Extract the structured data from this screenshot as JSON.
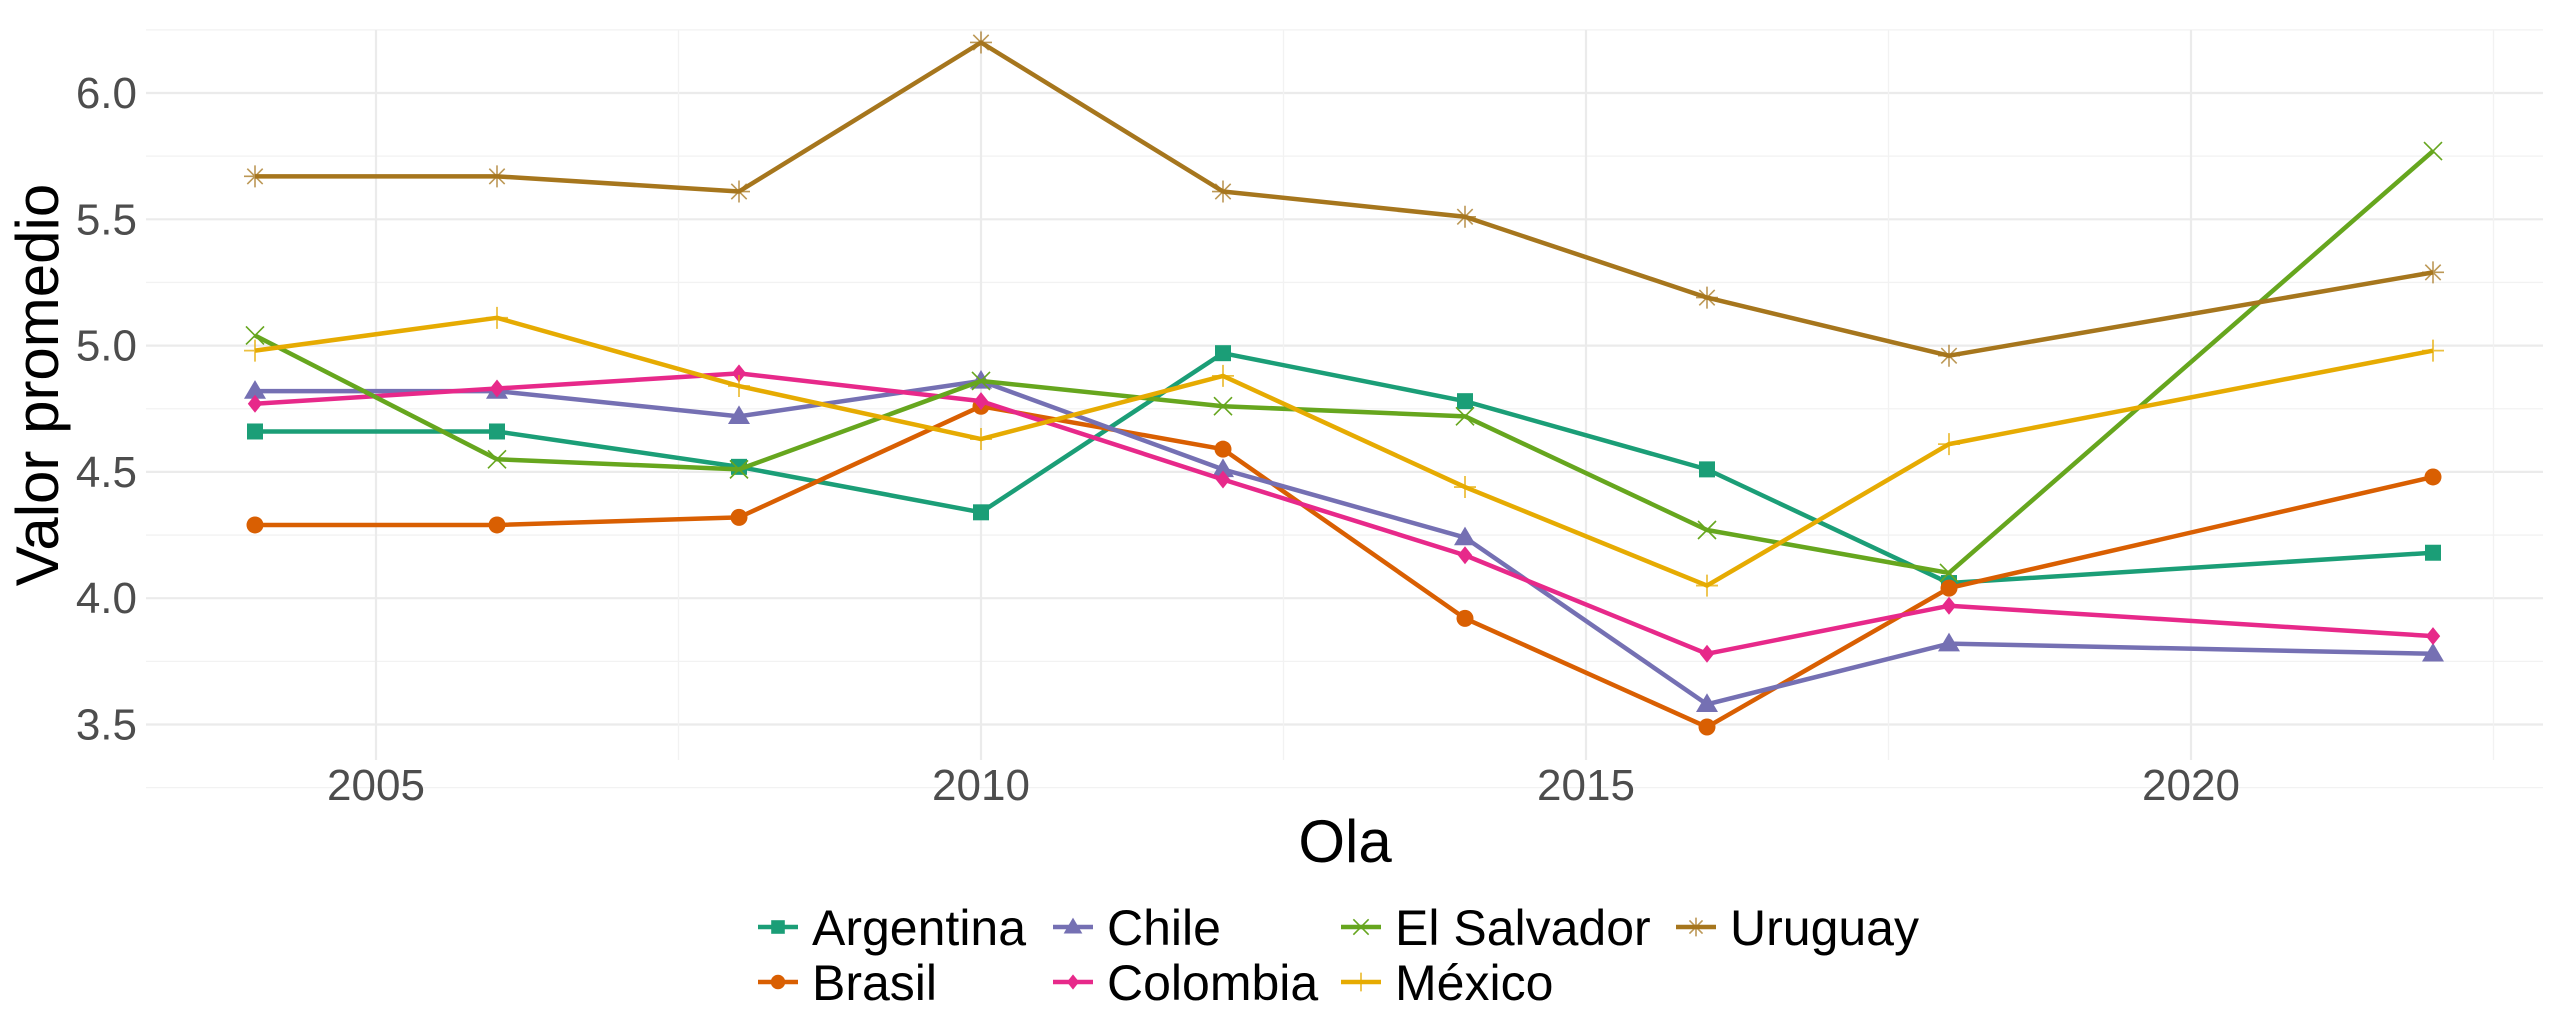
{
  "chart_data": {
    "type": "line",
    "title": "",
    "xlabel": "Ola",
    "ylabel": "Valor promedio",
    "xlim": [
      2003,
      2023.9
    ],
    "ylim": [
      3.36,
      6.25
    ],
    "x_ticks": [
      2005,
      2010,
      2015,
      2020
    ],
    "x_tick_labels": [
      "2005",
      "2010",
      "2015",
      "2020"
    ],
    "y_ticks": [
      3.5,
      4.0,
      4.5,
      5.0,
      5.5,
      6.0
    ],
    "y_tick_labels": [
      "3.5",
      "4.0",
      "4.5",
      "5.0",
      "5.5",
      "6.0"
    ],
    "grid": true,
    "legend_position": "bottom",
    "x": [
      2004,
      2006,
      2008,
      2010,
      2012,
      2014,
      2016,
      2018,
      2022
    ],
    "series": [
      {
        "name": "Argentina",
        "color": "#1B9E77",
        "marker": "square",
        "values": [
          4.66,
          4.66,
          4.52,
          4.34,
          4.97,
          4.78,
          4.51,
          4.06,
          4.18
        ]
      },
      {
        "name": "Brasil",
        "color": "#D95F02",
        "marker": "circle",
        "values": [
          4.29,
          4.29,
          4.32,
          4.76,
          4.59,
          3.92,
          3.49,
          4.04,
          4.48
        ]
      },
      {
        "name": "Chile",
        "color": "#7570B3",
        "marker": "triangle",
        "values": [
          4.82,
          4.82,
          4.72,
          4.86,
          4.51,
          4.24,
          3.58,
          3.82,
          3.78
        ]
      },
      {
        "name": "Colombia",
        "color": "#E7298A",
        "marker": "diamond",
        "values": [
          4.77,
          4.83,
          4.89,
          4.78,
          4.47,
          4.17,
          3.78,
          3.97,
          3.85
        ]
      },
      {
        "name": "El Salvador",
        "color": "#66A61E",
        "marker": "x",
        "values": [
          5.04,
          4.55,
          4.51,
          4.86,
          4.76,
          4.72,
          4.27,
          4.1,
          5.77
        ]
      },
      {
        "name": "México",
        "color": "#E6AB02",
        "marker": "plus",
        "values": [
          4.98,
          5.11,
          4.84,
          4.63,
          4.88,
          4.44,
          4.05,
          4.61,
          4.98
        ]
      },
      {
        "name": "Uruguay",
        "color": "#A6761D",
        "marker": "asterisk",
        "values": [
          5.67,
          5.67,
          5.61,
          6.2,
          5.61,
          5.51,
          5.19,
          4.96,
          5.29
        ]
      }
    ],
    "legend": {
      "rows": [
        [
          "Argentina",
          "Chile",
          "El Salvador",
          "Uruguay"
        ],
        [
          "Brasil",
          "Colombia",
          "México"
        ]
      ]
    }
  }
}
